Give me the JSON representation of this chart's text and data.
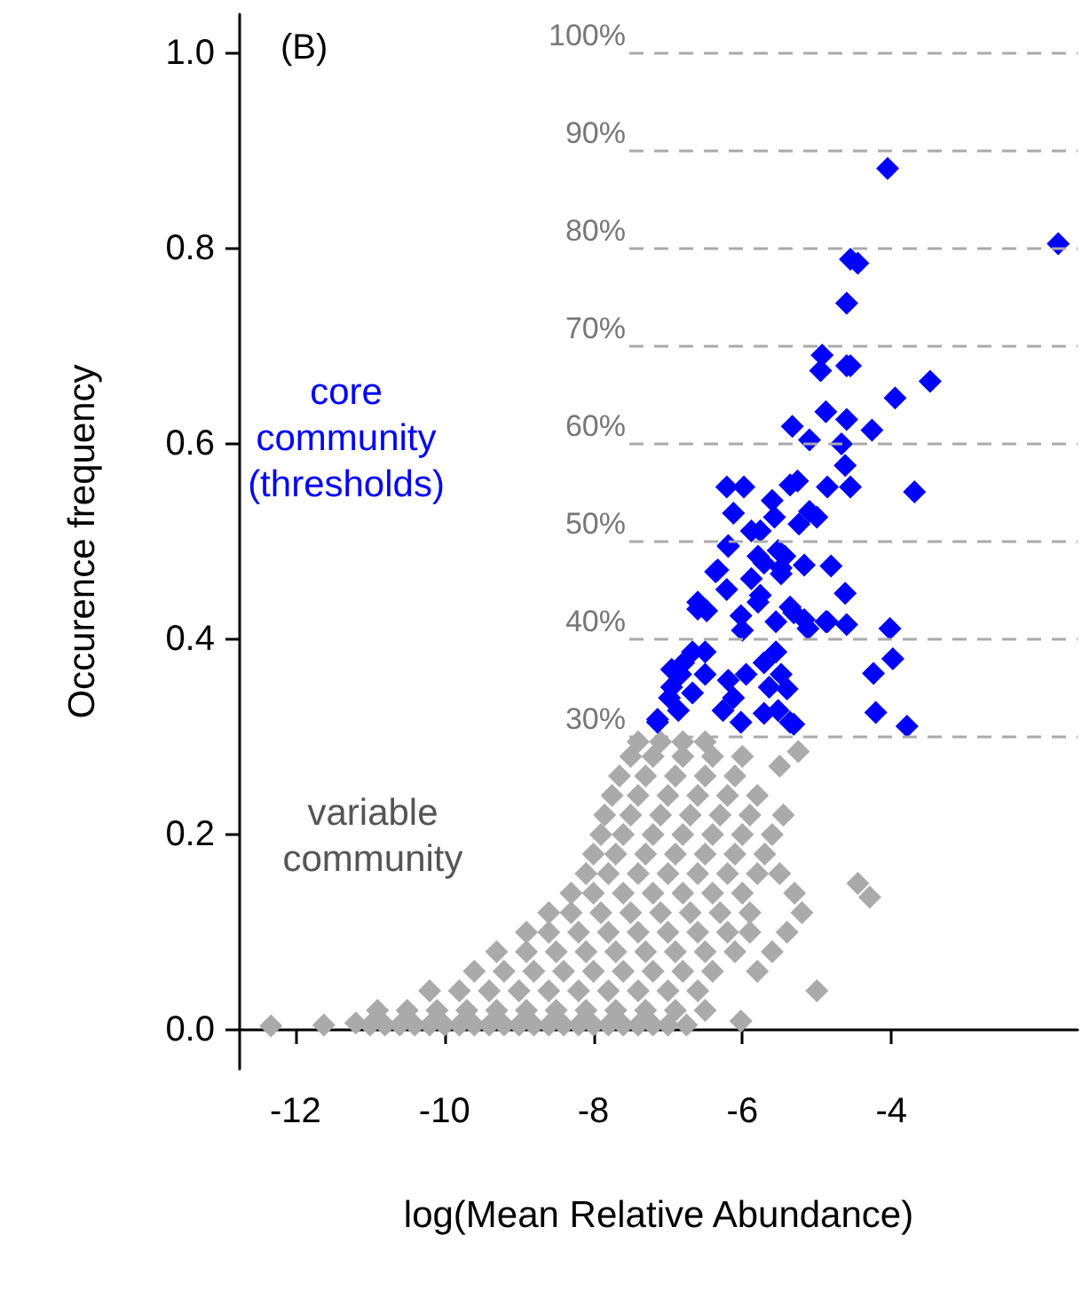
{
  "chart_data": {
    "type": "scatter",
    "xlabel": "log(Mean Relative Abundance)",
    "ylabel": "Occurence frequency",
    "annotations": [
      "(B)",
      "core\ncommunity\n(thresholds)",
      "variable\ncommunity"
    ],
    "xlim": [
      -12.75,
      -1.5
    ],
    "xticks": [
      -12,
      -10,
      -8,
      -6,
      -4
    ],
    "ylim": [
      -0.04,
      1.04
    ],
    "yticks": [
      {
        "value": 0,
        "label": "0.0"
      },
      0.2,
      0.4,
      0.6,
      0.8,
      {
        "value": 1,
        "label": "1.0"
      }
    ],
    "grid": false,
    "marker": "diamond",
    "ref_lines": [
      {
        "axis": "y",
        "value": 0.3,
        "label": "30%",
        "color": "#aaaaaa",
        "line_style": "dashed"
      },
      {
        "axis": "y",
        "value": 0.4,
        "label": "40%",
        "color": "#aaaaaa",
        "line_style": "dashed"
      },
      {
        "axis": "y",
        "value": 0.5,
        "label": "50%",
        "color": "#aaaaaa",
        "line_style": "dashed"
      },
      {
        "axis": "y",
        "value": 0.6,
        "label": "60%",
        "color": "#aaaaaa",
        "line_style": "dashed"
      },
      {
        "axis": "y",
        "value": 0.7,
        "label": "70%",
        "color": "#aaaaaa",
        "line_style": "dashed"
      },
      {
        "axis": "y",
        "value": 0.8,
        "label": "80%",
        "color": "#aaaaaa",
        "line_style": "dashed"
      },
      {
        "axis": "y",
        "value": 0.9,
        "label": "90%",
        "color": "#aaaaaa",
        "line_style": "dashed"
      },
      {
        "axis": "y",
        "value": 1.0,
        "label": "100%",
        "color": "#aaaaaa",
        "line_style": "dashed"
      }
    ],
    "series": [
      {
        "color": "#aaaaaa",
        "x": [
          -12.33,
          -11.62,
          -11.19,
          -11.0,
          -10.8,
          -10.6,
          -10.4,
          -10.2,
          -10.0,
          -9.8,
          -9.6,
          -9.4,
          -9.2,
          -9.0,
          -8.8,
          -8.6,
          -8.4,
          -8.2,
          -8.0,
          -7.8,
          -7.6,
          -7.4,
          -7.2,
          -7.0,
          -6.75,
          -10.9,
          -10.5,
          -10.1,
          -9.7,
          -9.3,
          -8.9,
          -8.5,
          -8.1,
          -7.7,
          -7.3,
          -6.9,
          -6.5,
          -6.02,
          -10.2,
          -9.8,
          -9.4,
          -9.0,
          -8.6,
          -8.2,
          -7.8,
          -7.4,
          -7.0,
          -6.6,
          -5.0,
          -9.6,
          -9.2,
          -8.8,
          -8.4,
          -8.0,
          -7.6,
          -7.2,
          -6.8,
          -6.4,
          -5.8,
          -9.3,
          -8.9,
          -8.5,
          -8.1,
          -7.7,
          -7.3,
          -6.9,
          -6.5,
          -6.1,
          -5.6,
          -8.9,
          -8.6,
          -8.2,
          -7.8,
          -7.4,
          -7.0,
          -6.6,
          -6.2,
          -5.9,
          -5.4,
          -8.6,
          -8.3,
          -7.9,
          -7.5,
          -7.1,
          -6.7,
          -6.3,
          -5.9,
          -5.2,
          -8.3,
          -8.0,
          -7.6,
          -7.2,
          -6.8,
          -6.4,
          -6.0,
          -5.3,
          -4.45,
          -4.29,
          -8.1,
          -7.8,
          -7.4,
          -7.0,
          -6.6,
          -6.2,
          -5.8,
          -5.5,
          -8.0,
          -7.7,
          -7.3,
          -6.9,
          -6.5,
          -6.1,
          -5.7,
          -7.9,
          -7.6,
          -7.2,
          -6.8,
          -6.4,
          -6.0,
          -5.6,
          -7.85,
          -7.5,
          -7.1,
          -6.7,
          -6.3,
          -5.9,
          -5.45,
          -7.75,
          -7.4,
          -7.0,
          -6.6,
          -6.2,
          -5.8,
          -7.65,
          -7.3,
          -6.9,
          -6.5,
          -6.1,
          -5.5,
          -7.5,
          -7.2,
          -6.8,
          -6.4,
          -6.0,
          -5.25,
          -7.4,
          -7.1,
          -6.8,
          -6.5
        ],
        "values": [
          0.004,
          0.005,
          0.007,
          0.005,
          0.005,
          0.005,
          0.005,
          0.005,
          0.005,
          0.005,
          0.005,
          0.005,
          0.005,
          0.005,
          0.005,
          0.005,
          0.005,
          0.005,
          0.005,
          0.005,
          0.005,
          0.005,
          0.005,
          0.005,
          0.005,
          0.02,
          0.02,
          0.02,
          0.02,
          0.02,
          0.02,
          0.02,
          0.02,
          0.02,
          0.02,
          0.02,
          0.02,
          0.009,
          0.04,
          0.04,
          0.04,
          0.04,
          0.04,
          0.04,
          0.04,
          0.04,
          0.04,
          0.04,
          0.04,
          0.06,
          0.06,
          0.06,
          0.06,
          0.06,
          0.06,
          0.06,
          0.06,
          0.06,
          0.06,
          0.08,
          0.08,
          0.08,
          0.08,
          0.08,
          0.08,
          0.08,
          0.08,
          0.08,
          0.08,
          0.1,
          0.1,
          0.1,
          0.1,
          0.1,
          0.1,
          0.1,
          0.1,
          0.1,
          0.1,
          0.12,
          0.12,
          0.12,
          0.12,
          0.12,
          0.12,
          0.12,
          0.12,
          0.12,
          0.14,
          0.14,
          0.14,
          0.14,
          0.14,
          0.14,
          0.14,
          0.14,
          0.15,
          0.136,
          0.16,
          0.16,
          0.16,
          0.16,
          0.16,
          0.16,
          0.16,
          0.16,
          0.18,
          0.18,
          0.18,
          0.18,
          0.18,
          0.18,
          0.18,
          0.2,
          0.2,
          0.2,
          0.2,
          0.2,
          0.2,
          0.2,
          0.22,
          0.22,
          0.22,
          0.22,
          0.22,
          0.22,
          0.22,
          0.24,
          0.24,
          0.24,
          0.24,
          0.24,
          0.24,
          0.26,
          0.26,
          0.26,
          0.26,
          0.26,
          0.27,
          0.28,
          0.28,
          0.28,
          0.28,
          0.28,
          0.285,
          0.295,
          0.295,
          0.295,
          0.295
        ]
      },
      {
        "color": "#0000ff",
        "x": [
          -4.05,
          -1.76,
          -4.45,
          -4.55,
          -4.6,
          -4.93,
          -4.95,
          -4.6,
          -4.55,
          -3.48,
          -3.95,
          -4.88,
          -4.6,
          -5.33,
          -4.26,
          -5.1,
          -4.67,
          -4.62,
          -6.21,
          -5.98,
          -5.26,
          -5.36,
          -4.86,
          -4.55,
          -3.69,
          -6.12,
          -5.6,
          -5.57,
          -5.1,
          -5.0,
          -5.24,
          -5.88,
          -5.76,
          -6.19,
          -5.79,
          -5.71,
          -5.52,
          -5.43,
          -5.48,
          -5.17,
          -4.81,
          -6.33,
          -6.21,
          -5.88,
          -5.76,
          -5.79,
          -6.6,
          -6.48,
          -5.36,
          -5.31,
          -4.62,
          -6.02,
          -6.0,
          -5.55,
          -5.17,
          -5.12,
          -4.86,
          -4.6,
          -4.02,
          -3.98,
          -4.24,
          -4.21,
          -3.79,
          -6.5,
          -6.67,
          -6.79,
          -6.95,
          -6.83,
          -6.98,
          -7.14,
          -6.86,
          -6.67,
          -6.5,
          -6.19,
          -6.12,
          -5.95,
          -6.26,
          -6.02,
          -5.71,
          -5.55,
          -5.48,
          -5.4,
          -5.64,
          -5.71,
          -5.52,
          -5.31,
          -7.14,
          -6.95,
          -6.6,
          -6.36,
          -6.19,
          -5.48,
          -4.88,
          -5.36
        ],
        "values": [
          0.882,
          0.805,
          0.785,
          0.789,
          0.744,
          0.691,
          0.675,
          0.68,
          0.68,
          0.664,
          0.647,
          0.633,
          0.625,
          0.618,
          0.614,
          0.604,
          0.6,
          0.578,
          0.556,
          0.556,
          0.562,
          0.558,
          0.556,
          0.556,
          0.551,
          0.529,
          0.542,
          0.525,
          0.531,
          0.525,
          0.518,
          0.511,
          0.511,
          0.495,
          0.485,
          0.478,
          0.491,
          0.485,
          0.467,
          0.476,
          0.475,
          0.471,
          0.451,
          0.462,
          0.445,
          0.438,
          0.438,
          0.429,
          0.433,
          0.427,
          0.447,
          0.424,
          0.409,
          0.418,
          0.42,
          0.411,
          0.418,
          0.415,
          0.411,
          0.38,
          0.365,
          0.325,
          0.311,
          0.387,
          0.387,
          0.376,
          0.369,
          0.364,
          0.34,
          0.318,
          0.327,
          0.345,
          0.364,
          0.358,
          0.34,
          0.364,
          0.327,
          0.315,
          0.376,
          0.387,
          0.364,
          0.349,
          0.351,
          0.324,
          0.327,
          0.313,
          0.315,
          0.351,
          0.431,
          0.469,
          0.496,
          0.473,
          0.418,
          0.315
        ]
      }
    ]
  }
}
